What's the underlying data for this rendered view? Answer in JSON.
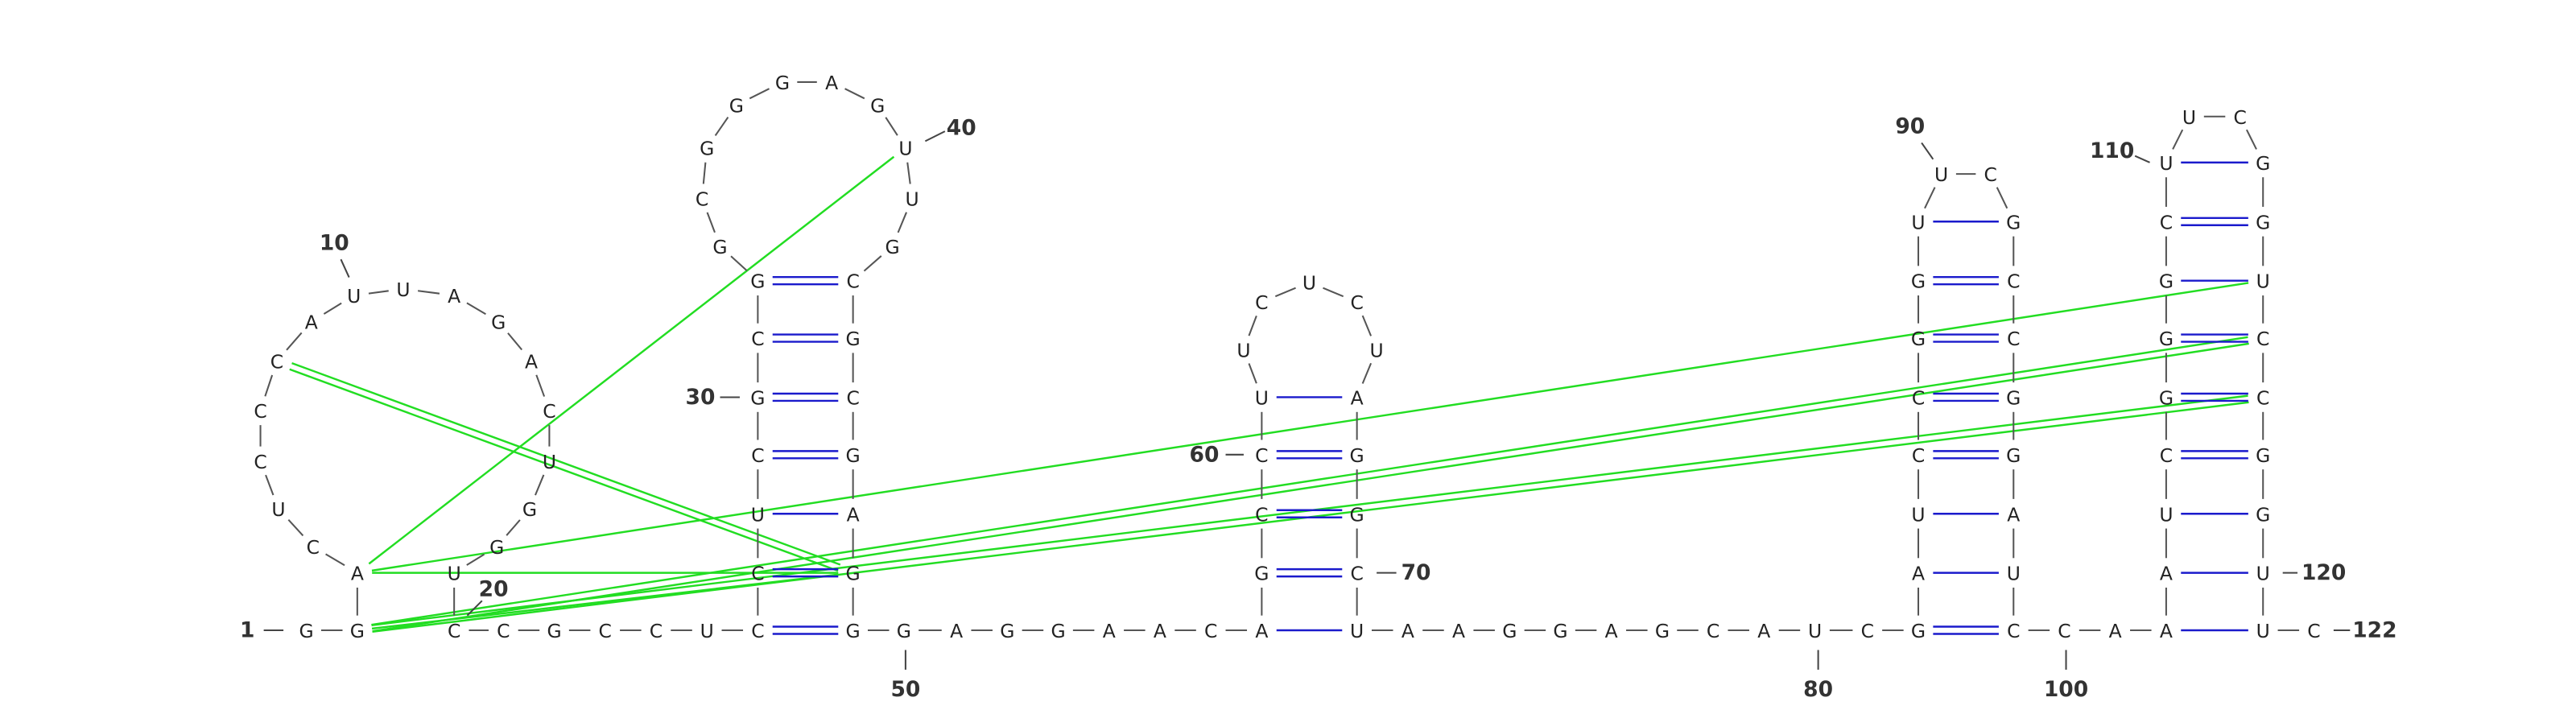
{
  "nucleotides": [
    "G",
    "G",
    "A",
    "C",
    "U",
    "C",
    "C",
    "C",
    "A",
    "U",
    "U",
    "A",
    "G",
    "A",
    "C",
    "U",
    "G",
    "G",
    "U",
    "C",
    "C",
    "G",
    "C",
    "C",
    "U",
    "C",
    "C",
    "U",
    "C",
    "G",
    "C",
    "G",
    "G",
    "C",
    "G",
    "G",
    "G",
    "A",
    "G",
    "U",
    "U",
    "G",
    "C",
    "G",
    "C",
    "G",
    "A",
    "G",
    "G",
    "G",
    "A",
    "G",
    "G",
    "A",
    "A",
    "C",
    "A",
    "G",
    "C",
    "C",
    "U",
    "U",
    "C",
    "U",
    "C",
    "U",
    "A",
    "G",
    "G",
    "C",
    "U",
    "A",
    "A",
    "G",
    "G",
    "A",
    "G",
    "C",
    "A",
    "U",
    "C",
    "G",
    "A",
    "U",
    "C",
    "C",
    "G",
    "G",
    "U",
    "U",
    "C",
    "G",
    "C",
    "C",
    "G",
    "G",
    "A",
    "U",
    "C",
    "C",
    "A",
    "A",
    "A",
    "U",
    "C",
    "G",
    "G",
    "G",
    "C",
    "U",
    "U",
    "C",
    "G",
    "G",
    "U",
    "C",
    "C",
    "G",
    "G",
    "U",
    "U",
    "C"
  ],
  "labels": [
    "1",
    "10",
    "20",
    "30",
    "40",
    "50",
    "60",
    "70",
    "80",
    "90",
    "100",
    "110",
    "120",
    "122"
  ]
}
